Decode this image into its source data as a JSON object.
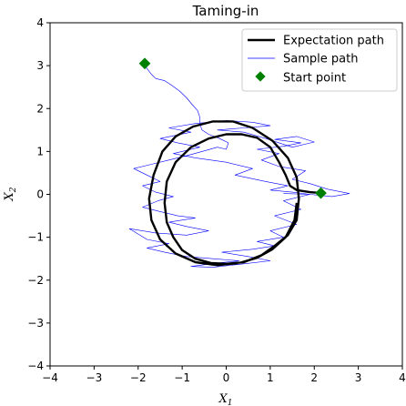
{
  "chart_data": {
    "type": "line",
    "title": "Taming-in",
    "xlabel": "X",
    "xlabel_sub": "1",
    "ylabel": "X",
    "ylabel_sub": "2",
    "xlim": [
      -4,
      4
    ],
    "ylim": [
      -4,
      4
    ],
    "xticks": [
      -4,
      -3,
      -2,
      -1,
      0,
      1,
      2,
      3,
      4
    ],
    "yticks": [
      -4,
      -3,
      -2,
      -1,
      0,
      1,
      2,
      3,
      4
    ],
    "xtick_labels": [
      "−4",
      "−3",
      "−2",
      "−1",
      "0",
      "1",
      "2",
      "3",
      "4"
    ],
    "ytick_labels": [
      "−4",
      "−3",
      "−2",
      "−1",
      "0",
      "1",
      "2",
      "3",
      "4"
    ],
    "grid": false,
    "legend_position": "top-right",
    "series": [
      {
        "name": "Expectation path",
        "color": "#000000",
        "x": [
          2.15,
          1.9,
          1.6,
          1.45,
          1.35,
          1.2,
          1.0,
          0.7,
          0.35,
          0.0,
          -0.4,
          -0.8,
          -1.15,
          -1.35,
          -1.4,
          -1.35,
          -1.2,
          -1.0,
          -0.7,
          -0.35,
          0.0,
          0.4,
          0.8,
          1.1,
          1.4,
          1.6,
          1.65,
          1.6,
          1.4,
          1.05,
          0.6,
          0.15,
          -0.3,
          -0.75,
          -1.15,
          -1.45,
          -1.65,
          -1.75,
          -1.7,
          -1.5,
          -1.15,
          -0.7,
          -0.2,
          0.3,
          0.7,
          1.05,
          1.35,
          1.55,
          1.6
        ],
        "y": [
          0.03,
          0.05,
          0.1,
          0.2,
          0.45,
          0.75,
          1.1,
          1.32,
          1.4,
          1.4,
          1.3,
          1.1,
          0.75,
          0.3,
          -0.2,
          -0.65,
          -1.0,
          -1.3,
          -1.5,
          -1.6,
          -1.62,
          -1.58,
          -1.42,
          -1.2,
          -0.95,
          -0.6,
          -0.1,
          0.4,
          0.85,
          1.25,
          1.55,
          1.7,
          1.7,
          1.58,
          1.35,
          1.0,
          0.45,
          -0.1,
          -0.6,
          -1.05,
          -1.38,
          -1.58,
          -1.65,
          -1.6,
          -1.48,
          -1.28,
          -1.0,
          -0.6,
          -0.2
        ]
      },
      {
        "name": "Sample path",
        "color": "#0000ff",
        "x": [
          -1.85,
          -1.7,
          -1.6,
          -1.4,
          -1.25,
          -1.05,
          -0.9,
          -0.78,
          -0.65,
          -0.6,
          -0.6,
          -0.55,
          -0.4,
          -0.15,
          0.05,
          0.0,
          -0.2,
          -0.55,
          -0.9,
          -1.3,
          -1.7,
          -2.1,
          -1.8,
          -1.5,
          -1.9,
          -1.6,
          -1.2,
          -1.55,
          -1.9,
          -1.5,
          -1.1,
          -0.7,
          -1.3,
          -0.9,
          -0.4,
          -0.9,
          -1.6,
          -2.2,
          -1.8,
          -1.3,
          -1.8,
          -1.4,
          -0.9,
          -0.3,
          0.3,
          -0.2,
          -0.8,
          -0.3,
          0.4,
          1.0,
          0.5,
          -0.1,
          0.6,
          1.1,
          0.7,
          1.3,
          1.0,
          1.6,
          1.1,
          1.7,
          1.3,
          1.9,
          2.4,
          2.8,
          2.3,
          1.9,
          1.5,
          1.8,
          1.2,
          0.8,
          1.2,
          0.7,
          1.3,
          1.7,
          1.1,
          1.6,
          2.0,
          1.5,
          0.9,
          0.4,
          -0.2,
          0.4,
          1.0,
          0.6,
          0.0,
          -0.7,
          -1.3,
          -0.8,
          -1.5,
          -1.1,
          -0.6,
          -1.2,
          -0.7,
          0.0,
          0.6,
          0.2,
          0.9,
          1.4,
          1.0,
          1.5,
          1.9,
          1.3
        ],
        "y": [
          3.0,
          2.8,
          2.7,
          2.65,
          2.55,
          2.4,
          2.25,
          2.1,
          1.95,
          1.8,
          1.65,
          1.5,
          1.4,
          1.3,
          1.2,
          1.05,
          1.1,
          1.0,
          0.9,
          0.8,
          0.7,
          0.6,
          0.45,
          0.3,
          0.2,
          0.05,
          -0.05,
          -0.15,
          -0.3,
          -0.4,
          -0.5,
          -0.55,
          -0.65,
          -0.75,
          -0.85,
          -0.95,
          -0.9,
          -0.8,
          -1.05,
          -1.15,
          -1.25,
          -1.35,
          -1.45,
          -1.5,
          -1.55,
          -1.6,
          -1.68,
          -1.7,
          -1.62,
          -1.55,
          -1.45,
          -1.35,
          -1.28,
          -1.2,
          -1.1,
          -1.0,
          -0.85,
          -0.7,
          -0.5,
          -0.35,
          -0.15,
          0.0,
          -0.05,
          0.02,
          0.12,
          0.25,
          0.35,
          0.55,
          0.65,
          0.8,
          0.95,
          1.05,
          1.12,
          1.2,
          1.28,
          1.35,
          1.22,
          1.1,
          1.3,
          1.45,
          1.5,
          1.55,
          1.6,
          1.68,
          1.72,
          1.65,
          1.55,
          1.45,
          1.3,
          1.2,
          1.1,
          0.95,
          0.85,
          0.75,
          0.6,
          0.45,
          0.3,
          0.2,
          0.1,
          0.05,
          0.0,
          0.02
        ]
      },
      {
        "name": "Start point",
        "color": "#008000",
        "x": [
          -1.85,
          2.15
        ],
        "y": [
          3.05,
          0.03
        ]
      }
    ]
  }
}
